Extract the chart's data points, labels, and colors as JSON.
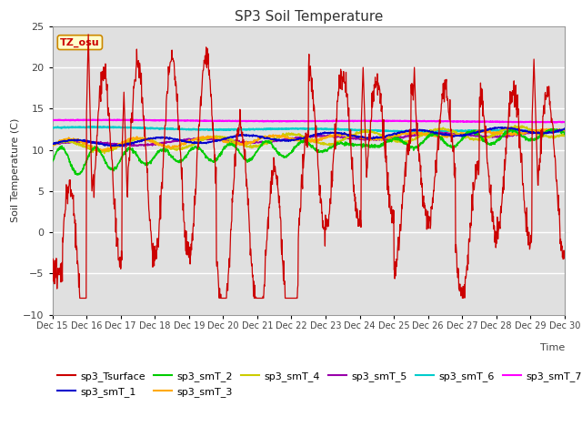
{
  "title": "SP3 Soil Temperature",
  "ylabel": "Soil Temperature (C)",
  "xlabel_text": "Time",
  "ylim": [
    -10,
    25
  ],
  "n_days": 15,
  "x_tick_labels": [
    "Dec 15",
    "Dec 16",
    "Dec 17",
    "Dec 18",
    "Dec 19",
    "Dec 20",
    "Dec 21",
    "Dec 22",
    "Dec 23",
    "Dec 24",
    "Dec 25",
    "Dec 26",
    "Dec 27",
    "Dec 28",
    "Dec 29",
    "Dec 30"
  ],
  "bg_color": "#e0e0e0",
  "fig_bg": "#ffffff",
  "series_colors": {
    "sp3_Tsurface": "#cc0000",
    "sp3_smT_1": "#0000cc",
    "sp3_smT_2": "#00cc00",
    "sp3_smT_3": "#ffaa00",
    "sp3_smT_4": "#cccc00",
    "sp3_smT_5": "#9900aa",
    "sp3_smT_6": "#00cccc",
    "sp3_smT_7": "#ff00ff"
  },
  "tz_label": "TZ_osu",
  "tz_facecolor": "#ffffcc",
  "tz_edgecolor": "#cc8800",
  "tz_textcolor": "#cc0000",
  "title_fontsize": 11,
  "axis_label_fontsize": 8,
  "tick_fontsize": 7,
  "legend_fontsize": 8
}
